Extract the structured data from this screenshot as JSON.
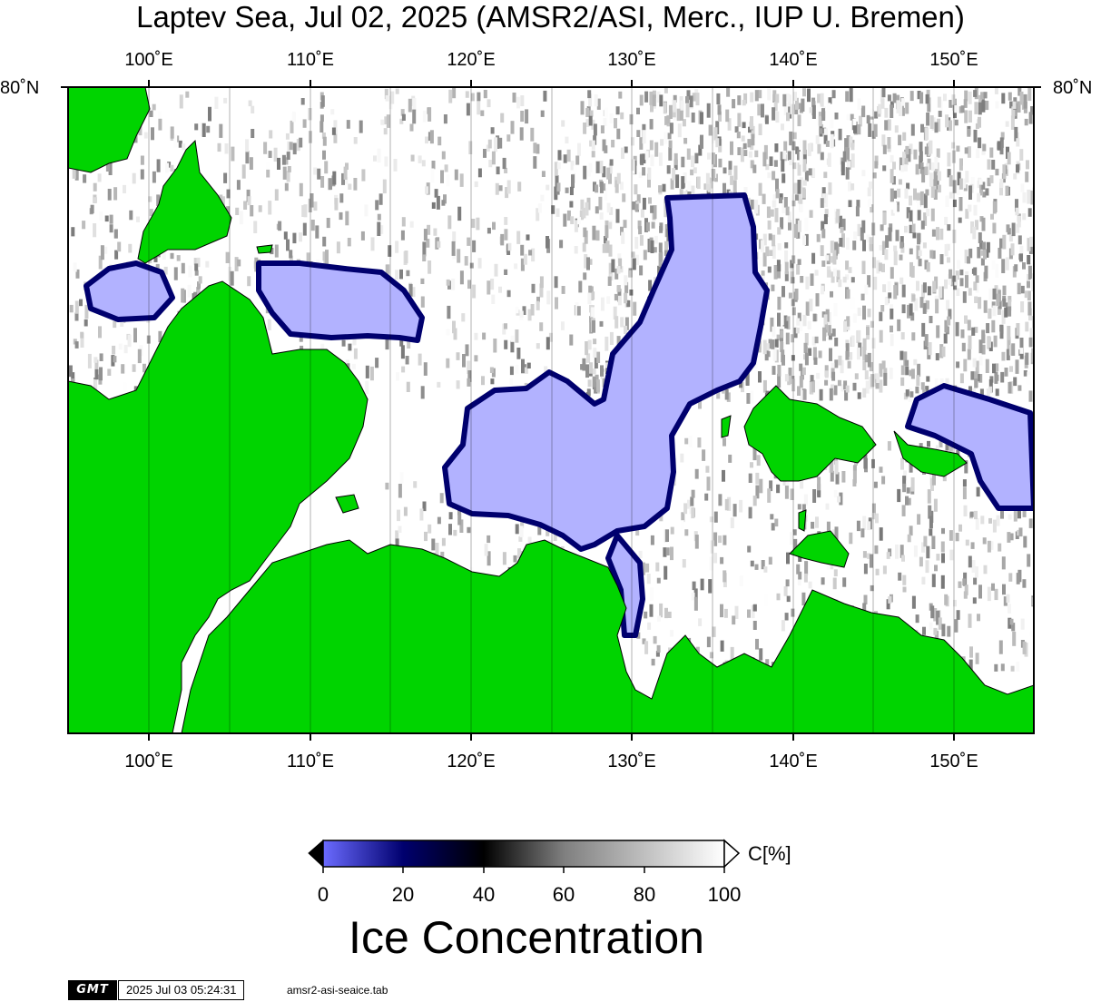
{
  "title": "Laptev Sea, Jul 02, 2025 (AMSR2/ASI, Merc., IUP U. Bremen)",
  "lon_ticks": [
    "100˚E",
    "110˚E",
    "120˚E",
    "130˚E",
    "140˚E",
    "150˚E"
  ],
  "lat_tick": "80˚N",
  "colorbar": {
    "ticks": [
      "0",
      "20",
      "40",
      "60",
      "80",
      "100"
    ],
    "unit": "C[%]",
    "title": "Ice Concentration",
    "colors": [
      "#6b6bff",
      "#00006e",
      "#000000",
      "#7f7f7f",
      "#ffffff"
    ]
  },
  "land_color": "#00d400",
  "low_ice_color": "#b2b2ff",
  "footer": {
    "logo": "GMT",
    "timestamp": "2025 Jul 03 05:24:31",
    "file": "amsr2-asi-seaice.tab"
  }
}
